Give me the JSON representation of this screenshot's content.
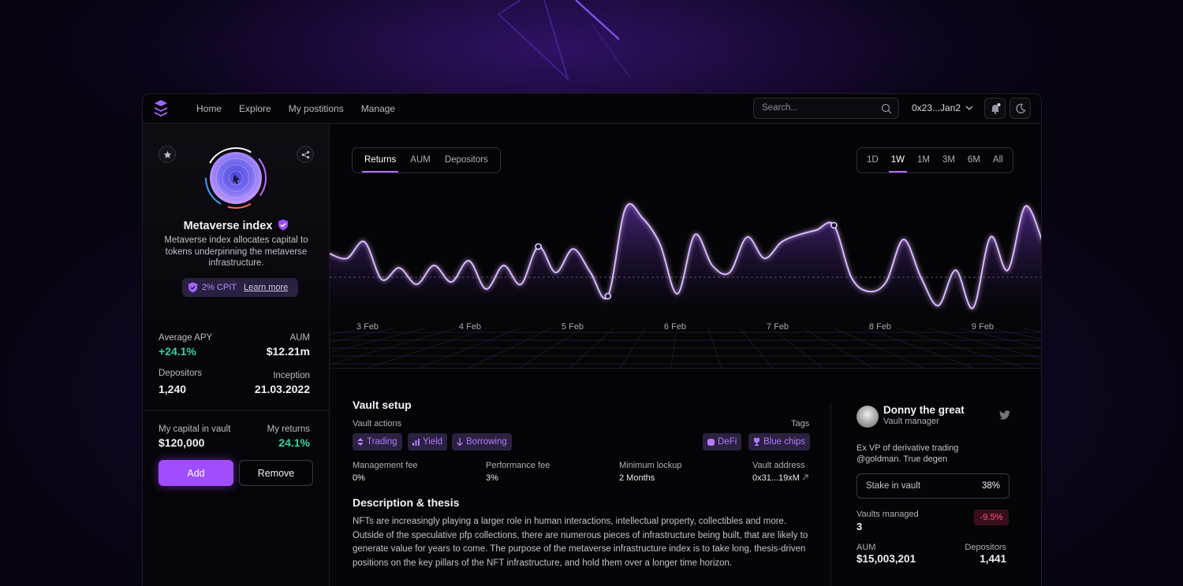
{
  "nav": {
    "items": [
      "Home",
      "Explore",
      "My postitions",
      "Manage"
    ],
    "search_placeholder": "Search...",
    "wallet": "0x23...Jan2"
  },
  "vault": {
    "name": "Metaverse index",
    "description": "Metaverse index allocates capital to tokens underpinning the metaverse infrastructure.",
    "cpit_label": "2% CPIT",
    "learn_more": "Learn more",
    "stats": {
      "avg_apy_label": "Average APY",
      "avg_apy": "+24.1%",
      "aum_label": "AUM",
      "aum": "$12.21m",
      "depositors_label": "Depositors",
      "depositors": "1,240",
      "inception_label": "Inception",
      "inception": "21.03.2022"
    },
    "my_capital_label": "My capital in vault",
    "my_capital": "$120,000",
    "my_returns_label": "My returns",
    "my_returns": "24.1%",
    "add_label": "Add",
    "remove_label": "Remove"
  },
  "chart": {
    "tabs": [
      "Returns",
      "AUM",
      "Depositors"
    ],
    "active_tab": "Returns",
    "ranges": [
      "1D",
      "1W",
      "1M",
      "3M",
      "6M",
      "All"
    ],
    "active_range": "1W",
    "accent": "#b36bff"
  },
  "chart_data": {
    "type": "area",
    "x_labels": [
      "3 Feb",
      "4 Feb",
      "5 Feb",
      "6 Feb",
      "7 Feb",
      "8 Feb",
      "9 Feb"
    ],
    "values": [
      55,
      53,
      60,
      44,
      49,
      42,
      50,
      43,
      52,
      40,
      50,
      42,
      58,
      47,
      57,
      47,
      37,
      74,
      70,
      59,
      38,
      63,
      50,
      47,
      62,
      53,
      60,
      63,
      65,
      67,
      45,
      39,
      43,
      61,
      45,
      33,
      48,
      32,
      62,
      48,
      75,
      60
    ],
    "highlighted_points": [
      12,
      16,
      29
    ],
    "baseline": 45,
    "grid": true
  },
  "setup": {
    "title": "Vault setup",
    "actions_label": "Vault actions",
    "actions": [
      "Trading",
      "Yield",
      "Borrowing"
    ],
    "tags_label": "Tags",
    "tags": [
      "DeFi",
      "Blue chips"
    ],
    "fees": [
      {
        "label": "Management fee",
        "value": "0%"
      },
      {
        "label": "Performance fee",
        "value": "3%"
      },
      {
        "label": "Minimum lockup",
        "value": "2 Months"
      },
      {
        "label": "Vault address",
        "value": "0x31...19xM"
      }
    ],
    "desc_title": "Description & thesis",
    "desc": "NFTs are increasingly playing a larger role in human interactions, intellectual property, collectibles and more. Outside of the speculative pfp collections, there are numerous pieces of infrastructure being built, that are likely to generate value for years to come. The purpose of the metaverse infrastructure index is to take long, thesis-driven positions on the key pillars of the NFT infrastructure, and hold them over a longer time horizon."
  },
  "manager": {
    "name": "Donny the great",
    "role": "Vault manager",
    "bio": "Ex VP of derivative trading @goldman. True degen",
    "stake_label": "Stake in vault",
    "stake": "38%",
    "vaults_managed_label": "Vaults managed",
    "vaults_managed": "3",
    "vaults_change": "-9.5%",
    "aum_label": "AUM",
    "aum": "$15,003,201",
    "depositors_label": "Depositors",
    "depositors": "1,441"
  }
}
